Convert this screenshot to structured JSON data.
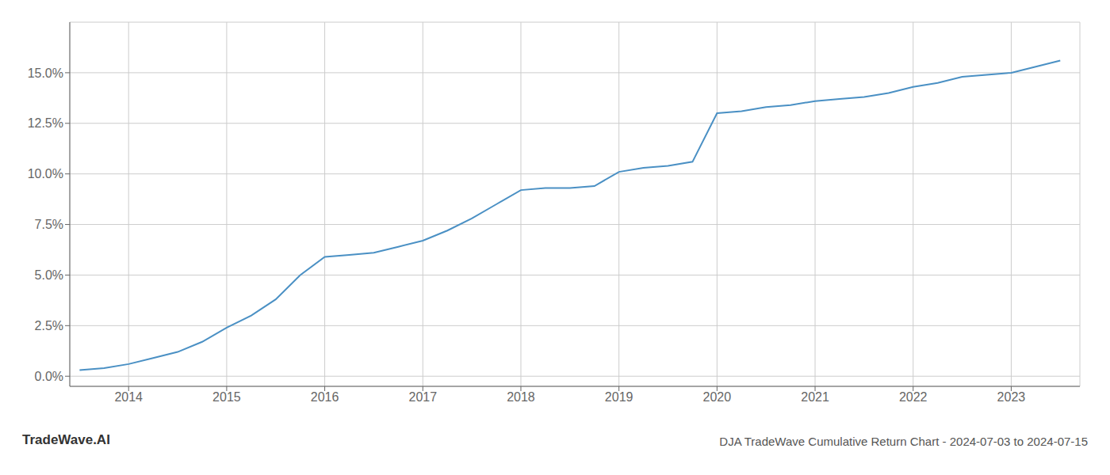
{
  "chart_data": {
    "type": "line",
    "title": "DJA TradeWave Cumulative Return Chart - 2024-07-03 to 2024-07-15",
    "annotations": [
      "TradeWave.AI"
    ],
    "x": [
      2013.5,
      2013.75,
      2014.0,
      2014.25,
      2014.5,
      2014.75,
      2015.0,
      2015.25,
      2015.5,
      2015.75,
      2016.0,
      2016.25,
      2016.5,
      2016.75,
      2017.0,
      2017.25,
      2017.5,
      2017.75,
      2018.0,
      2018.25,
      2018.5,
      2018.75,
      2019.0,
      2019.25,
      2019.5,
      2019.75,
      2020.0,
      2020.25,
      2020.5,
      2020.75,
      2021.0,
      2021.25,
      2021.5,
      2021.75,
      2022.0,
      2022.25,
      2022.5,
      2022.75,
      2023.0,
      2023.25,
      2023.5
    ],
    "values": [
      0.003,
      0.004,
      0.006,
      0.009,
      0.012,
      0.017,
      0.024,
      0.03,
      0.038,
      0.05,
      0.059,
      0.06,
      0.061,
      0.064,
      0.067,
      0.072,
      0.078,
      0.085,
      0.092,
      0.093,
      0.093,
      0.094,
      0.101,
      0.103,
      0.104,
      0.106,
      0.13,
      0.131,
      0.133,
      0.134,
      0.136,
      0.137,
      0.138,
      0.14,
      0.143,
      0.145,
      0.148,
      0.149,
      0.15,
      0.153,
      0.156
    ],
    "color": "#4a90c4",
    "xlim": [
      2013.4,
      2023.7
    ],
    "ylim": [
      -0.005,
      0.175
    ],
    "xticks": [
      2014,
      2015,
      2016,
      2017,
      2018,
      2019,
      2020,
      2021,
      2022,
      2023
    ],
    "yticks": [
      {
        "value": 0.0,
        "label": "0.0%"
      },
      {
        "value": 0.025,
        "label": "2.5%"
      },
      {
        "value": 0.05,
        "label": "5.0%"
      },
      {
        "value": 0.075,
        "label": "7.5%"
      },
      {
        "value": 0.1,
        "label": "10.0%"
      },
      {
        "value": 0.125,
        "label": "12.5%"
      },
      {
        "value": 0.15,
        "label": "15.0%"
      }
    ],
    "grid": true
  }
}
